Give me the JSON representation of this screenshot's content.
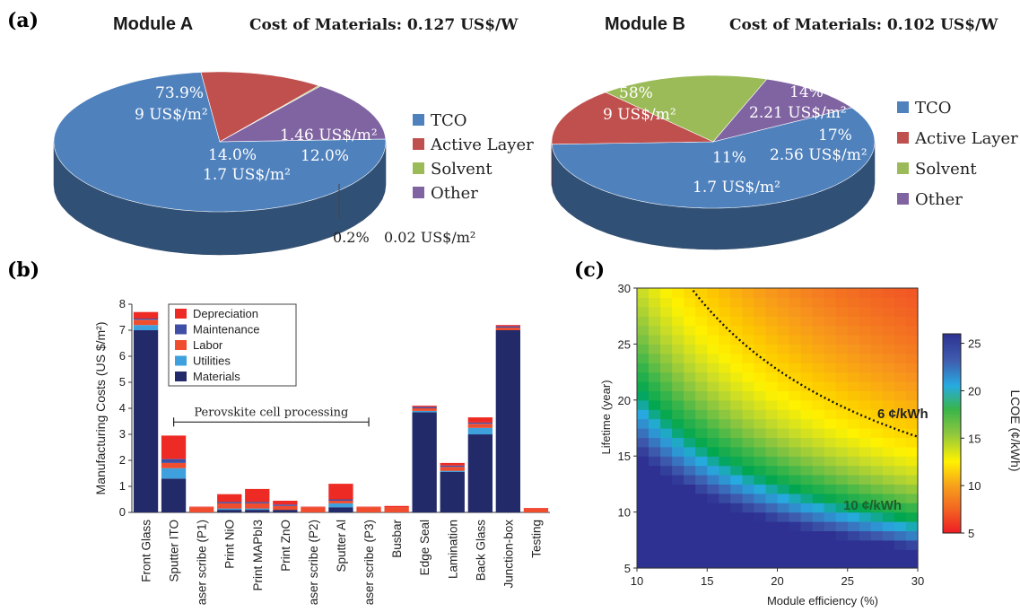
{
  "panel_labels": {
    "a": "(a)",
    "b": "(b)",
    "c": "(c)"
  },
  "colors": {
    "tco": "#4f81bd",
    "active": "#c0504d",
    "solvent": "#9bbb59",
    "other": "#8064a2",
    "depreciation": "#ee2a24",
    "maintenance": "#3f4fa6",
    "labor": "#ef4d2e",
    "utilities": "#3ea1dd",
    "materials": "#232a69"
  },
  "chart_data": [
    {
      "type": "pie",
      "title": "Module A",
      "subtitle": "Cost of Materials: 0.127 US$/W",
      "legend": [
        "TCO",
        "Active Layer",
        "Solvent",
        "Other"
      ],
      "slices": [
        {
          "name": "TCO",
          "percent": 73.9,
          "pct_label": "73.9%",
          "value_label": "9 US$/m²"
        },
        {
          "name": "Active Layer",
          "percent": 12.0,
          "pct_label": "12.0%",
          "value_label": "1.46 US$/m²"
        },
        {
          "name": "Solvent",
          "percent": 0.2,
          "pct_label": "0.2%",
          "value_label": "0.02 US$/m²"
        },
        {
          "name": "Other",
          "percent": 14.0,
          "pct_label": "14.0%",
          "value_label": "1.7 US$/m²"
        }
      ]
    },
    {
      "type": "pie",
      "title": "Module B",
      "subtitle": "Cost of Materials: 0.102 US$/W",
      "legend": [
        "TCO",
        "Active Layer",
        "Solvent",
        "Other"
      ],
      "slices": [
        {
          "name": "TCO",
          "percent": 58,
          "pct_label": "58%",
          "value_label": "9 US$/m²"
        },
        {
          "name": "Active Layer",
          "percent": 14,
          "pct_label": "14%",
          "value_label": "2.21 US$/m²"
        },
        {
          "name": "Solvent",
          "percent": 17,
          "pct_label": "17%",
          "value_label": "2.56 US$/m²"
        },
        {
          "name": "Other",
          "percent": 11,
          "pct_label": "11%",
          "value_label": "1.7 US$/m²"
        }
      ]
    },
    {
      "type": "bar",
      "stacked": true,
      "ylabel": "Manufacturing Costs (US $/m²)",
      "ylim": [
        0,
        8
      ],
      "yticks": [
        0,
        1,
        2,
        3,
        4,
        5,
        6,
        7,
        8
      ],
      "categories": [
        "Front Glass",
        "Sputter ITO",
        "aser scribe (P1)",
        "Print NiO",
        "Print MAPbI3",
        "Print ZnO",
        "aser scribe (P2)",
        "Sputter Al",
        "aser scribe (P3)",
        "Busbar",
        "Edge Seal",
        "Lamination",
        "Back Glass",
        "Junction-box",
        "Testing"
      ],
      "series": [
        {
          "name": "Materials",
          "values": [
            7.0,
            1.3,
            0.0,
            0.1,
            0.1,
            0.1,
            0.0,
            0.2,
            0.0,
            0.0,
            3.85,
            1.55,
            3.0,
            7.0,
            0.0
          ]
        },
        {
          "name": "Utilities",
          "values": [
            0.2,
            0.4,
            0.0,
            0.05,
            0.05,
            0.0,
            0.0,
            0.15,
            0.0,
            0.0,
            0.05,
            0.05,
            0.25,
            0.0,
            0.0
          ]
        },
        {
          "name": "Labor",
          "values": [
            0.2,
            0.2,
            0.2,
            0.2,
            0.2,
            0.15,
            0.2,
            0.1,
            0.2,
            0.2,
            0.1,
            0.15,
            0.15,
            0.1,
            0.15
          ]
        },
        {
          "name": "Maintenance",
          "values": [
            0.05,
            0.15,
            0.0,
            0.05,
            0.05,
            0.05,
            0.0,
            0.05,
            0.0,
            0.0,
            0.05,
            0.05,
            0.05,
            0.05,
            0.0
          ]
        },
        {
          "name": "Depreciation",
          "values": [
            0.25,
            0.9,
            0.02,
            0.3,
            0.5,
            0.15,
            0.02,
            0.6,
            0.02,
            0.05,
            0.05,
            0.1,
            0.2,
            0.05,
            0.02
          ]
        }
      ],
      "legend_order": [
        "Depreciation",
        "Maintenance",
        "Labor",
        "Utilities",
        "Materials"
      ],
      "annotation": {
        "text": "Perovskite cell processing",
        "x_from": "Sputter ITO",
        "x_to": "aser scribe (P3)",
        "y": 3.3
      }
    },
    {
      "type": "heatmap",
      "xlabel": "Module efficiency (%)",
      "ylabel": "Lifetime (year)",
      "xlim": [
        10,
        30
      ],
      "ylim": [
        5,
        30
      ],
      "xticks": [
        10,
        15,
        20,
        25,
        30
      ],
      "yticks": [
        5,
        10,
        15,
        20,
        25,
        30
      ],
      "colorbar": {
        "label": "LCOE (¢/kWh)",
        "min": 5,
        "max": 26,
        "ticks": [
          5,
          10,
          15,
          20,
          25
        ]
      },
      "contours": [
        {
          "label": "6 ¢/kWh",
          "value": 6
        },
        {
          "label": "10 ¢/kWh",
          "value": 10
        }
      ]
    }
  ]
}
